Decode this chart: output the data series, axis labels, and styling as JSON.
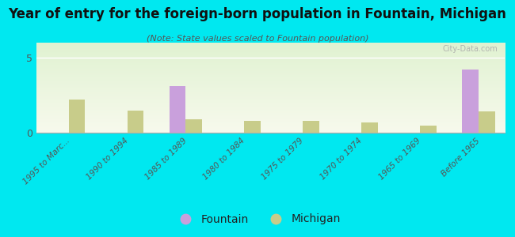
{
  "title": "Year of entry for the foreign-born population in Fountain, Michigan",
  "subtitle": "(Note: State values scaled to Fountain population)",
  "categories": [
    "1995 to Marc...",
    "1990 to 1994",
    "1985 to 1989",
    "1980 to 1984",
    "1975 to 1979",
    "1970 to 1974",
    "1965 to 1969",
    "Before 1965"
  ],
  "fountain_values": [
    0,
    0,
    3.1,
    0,
    0,
    0,
    0,
    4.2
  ],
  "michigan_values": [
    2.2,
    1.5,
    0.9,
    0.8,
    0.8,
    0.7,
    0.5,
    1.4
  ],
  "fountain_color": "#c9a0dc",
  "michigan_color": "#c8cc8a",
  "background_color": "#00e8f0",
  "ylim": [
    0,
    6
  ],
  "yticks": [
    0,
    5
  ],
  "bar_width": 0.28,
  "watermark": "City-Data.com",
  "legend_fountain": "Fountain",
  "legend_michigan": "Michigan",
  "title_fontsize": 12,
  "subtitle_fontsize": 8,
  "legend_fontsize": 10
}
